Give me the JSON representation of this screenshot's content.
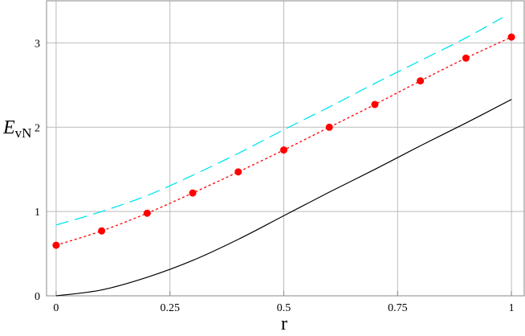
{
  "chart_data": {
    "type": "line",
    "xlabel": "r",
    "ylabel_main": "E",
    "ylabel_sub": "vN",
    "xlim": [
      -0.021,
      1.028
    ],
    "ylim": [
      0,
      3.5
    ],
    "xticks": [
      0,
      0.25,
      0.5,
      0.75,
      1
    ],
    "xtick_labels": [
      "0",
      "0.25",
      "0.5",
      "0.75",
      "1"
    ],
    "yticks": [
      0,
      1,
      2,
      3
    ],
    "ytick_labels": [
      "0",
      "1",
      "2",
      "3"
    ],
    "grid": true,
    "series": [
      {
        "style": "dashed",
        "color": "#00e5ee",
        "marker": "none",
        "x": [
          0,
          0.1,
          0.2,
          0.3,
          0.4,
          0.5,
          0.6,
          0.7,
          0.8,
          0.9,
          0.98
        ],
        "y": [
          0.84,
          1.0,
          1.19,
          1.43,
          1.69,
          1.97,
          2.24,
          2.52,
          2.79,
          3.06,
          3.3
        ]
      },
      {
        "style": "dotted",
        "color": "#ff0000",
        "marker": "circle",
        "x": [
          0,
          0.1,
          0.2,
          0.3,
          0.4,
          0.5,
          0.6,
          0.7,
          0.8,
          0.9,
          1.0
        ],
        "y": [
          0.6,
          0.77,
          0.98,
          1.22,
          1.47,
          1.73,
          2.0,
          2.27,
          2.55,
          2.82,
          3.07
        ]
      },
      {
        "style": "solid",
        "color": "#000000",
        "marker": "none",
        "x": [
          0,
          0.1,
          0.2,
          0.3,
          0.4,
          0.5,
          0.6,
          0.7,
          0.8,
          0.9,
          1.0
        ],
        "y": [
          0,
          0.07,
          0.22,
          0.42,
          0.67,
          0.95,
          1.23,
          1.5,
          1.78,
          2.05,
          2.33
        ]
      }
    ]
  }
}
